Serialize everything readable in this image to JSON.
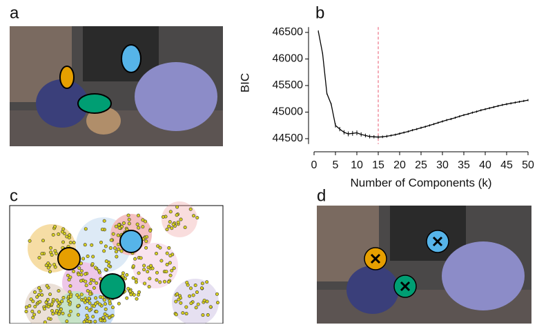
{
  "panel_labels": [
    "a",
    "b",
    "c",
    "d"
  ],
  "chart_data": {
    "type": "line",
    "x": [
      1,
      2,
      3,
      4,
      5,
      6,
      7,
      8,
      9,
      10,
      11,
      12,
      13,
      14,
      15,
      16,
      17,
      18,
      19,
      20,
      21,
      22,
      23,
      24,
      25,
      26,
      27,
      28,
      29,
      30,
      31,
      32,
      33,
      34,
      35,
      36,
      37,
      38,
      39,
      40,
      41,
      42,
      43,
      44,
      45,
      46,
      47,
      48,
      49,
      50
    ],
    "series": [
      {
        "name": "BIC",
        "color": "#000000",
        "values": [
          46520,
          46100,
          45350,
          45150,
          44750,
          44680,
          44620,
          44590,
          44600,
          44610,
          44580,
          44560,
          44540,
          44535,
          44530,
          44535,
          44545,
          44560,
          44575,
          44595,
          44615,
          44635,
          44660,
          44680,
          44705,
          44725,
          44750,
          44775,
          44800,
          44825,
          44850,
          44870,
          44895,
          44920,
          44945,
          44965,
          44990,
          45010,
          45035,
          45055,
          45075,
          45095,
          45115,
          45135,
          45150,
          45165,
          45180,
          45195,
          45210,
          45225
        ],
        "errors": [
          20,
          20,
          20,
          20,
          40,
          40,
          40,
          45,
          45,
          45,
          40,
          35,
          35,
          30,
          30,
          25,
          25,
          20,
          20,
          20,
          20,
          20,
          20,
          20,
          20,
          20,
          20,
          20,
          20,
          20,
          20,
          20,
          20,
          20,
          20,
          20,
          20,
          20,
          20,
          20,
          20,
          20,
          20,
          20,
          20,
          20,
          20,
          20,
          20,
          20
        ]
      }
    ],
    "xlabel": "Number of Components (k)",
    "ylabel": "BIC",
    "xlim": [
      0,
      50
    ],
    "xticks": [
      0,
      5,
      10,
      15,
      20,
      25,
      30,
      35,
      40,
      45,
      50
    ],
    "ylim": [
      44400,
      46600
    ],
    "yticks": [
      44500,
      45000,
      45500,
      46000,
      46500
    ],
    "vline": {
      "x": 15,
      "color": "#e8556d"
    }
  }
}
